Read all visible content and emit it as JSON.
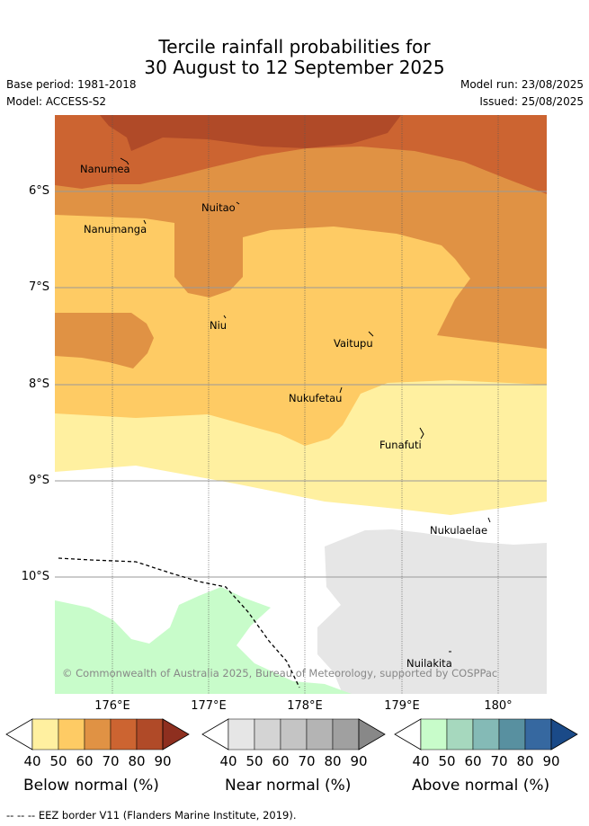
{
  "title": {
    "line1": "Tercile rainfall probabilities for",
    "line2": "30 August to 12 September 2025"
  },
  "meta": {
    "base_period": "Base period: 1981-2018",
    "model": "Model: ACCESS-S2",
    "model_run": "Model run: 23/08/2025",
    "issued": "Issued: 25/08/2025"
  },
  "axes": {
    "lat_labels": [
      "6°S",
      "7°S",
      "8°S",
      "9°S",
      "10°S"
    ],
    "lon_labels": [
      "176°E",
      "177°E",
      "178°E",
      "179°E",
      "180°"
    ]
  },
  "places": {
    "nanumea": "Nanumea",
    "nuitao": "Nuitao",
    "nanumanga": "Nanumanga",
    "niu": "Niu",
    "vaitupu": "Vaitupu",
    "nukufetau": "Nukufetau",
    "funafuti": "Funafuti",
    "nukulaelae": "Nukulaelae",
    "nuilakita": "Nuilakita"
  },
  "copyright": "© Commonwealth of Australia 2025, Bureau of Meteorology, supported by COSPPac",
  "colors": {
    "below": [
      "#fff0a0",
      "#fecb64",
      "#e09244",
      "#cc6431",
      "#b04a28",
      "#8e2f1f"
    ],
    "near": [
      "#e6e6e6",
      "#d4d4d4",
      "#c4c4c4",
      "#b4b4b4",
      "#a0a0a0",
      "#888888"
    ],
    "above": [
      "#c8fcca",
      "#a6d8be",
      "#84bab6",
      "#5890a0",
      "#3668a0",
      "#1a4a88"
    ]
  },
  "colorbars": {
    "ticks": [
      "40",
      "50",
      "60",
      "70",
      "80",
      "90"
    ],
    "below_label": "Below normal (%)",
    "near_label": "Near normal (%)",
    "above_label": "Above normal (%)"
  },
  "footer": "--  --  -- EEZ border V11 (Flanders Marine Institute, 2019)."
}
